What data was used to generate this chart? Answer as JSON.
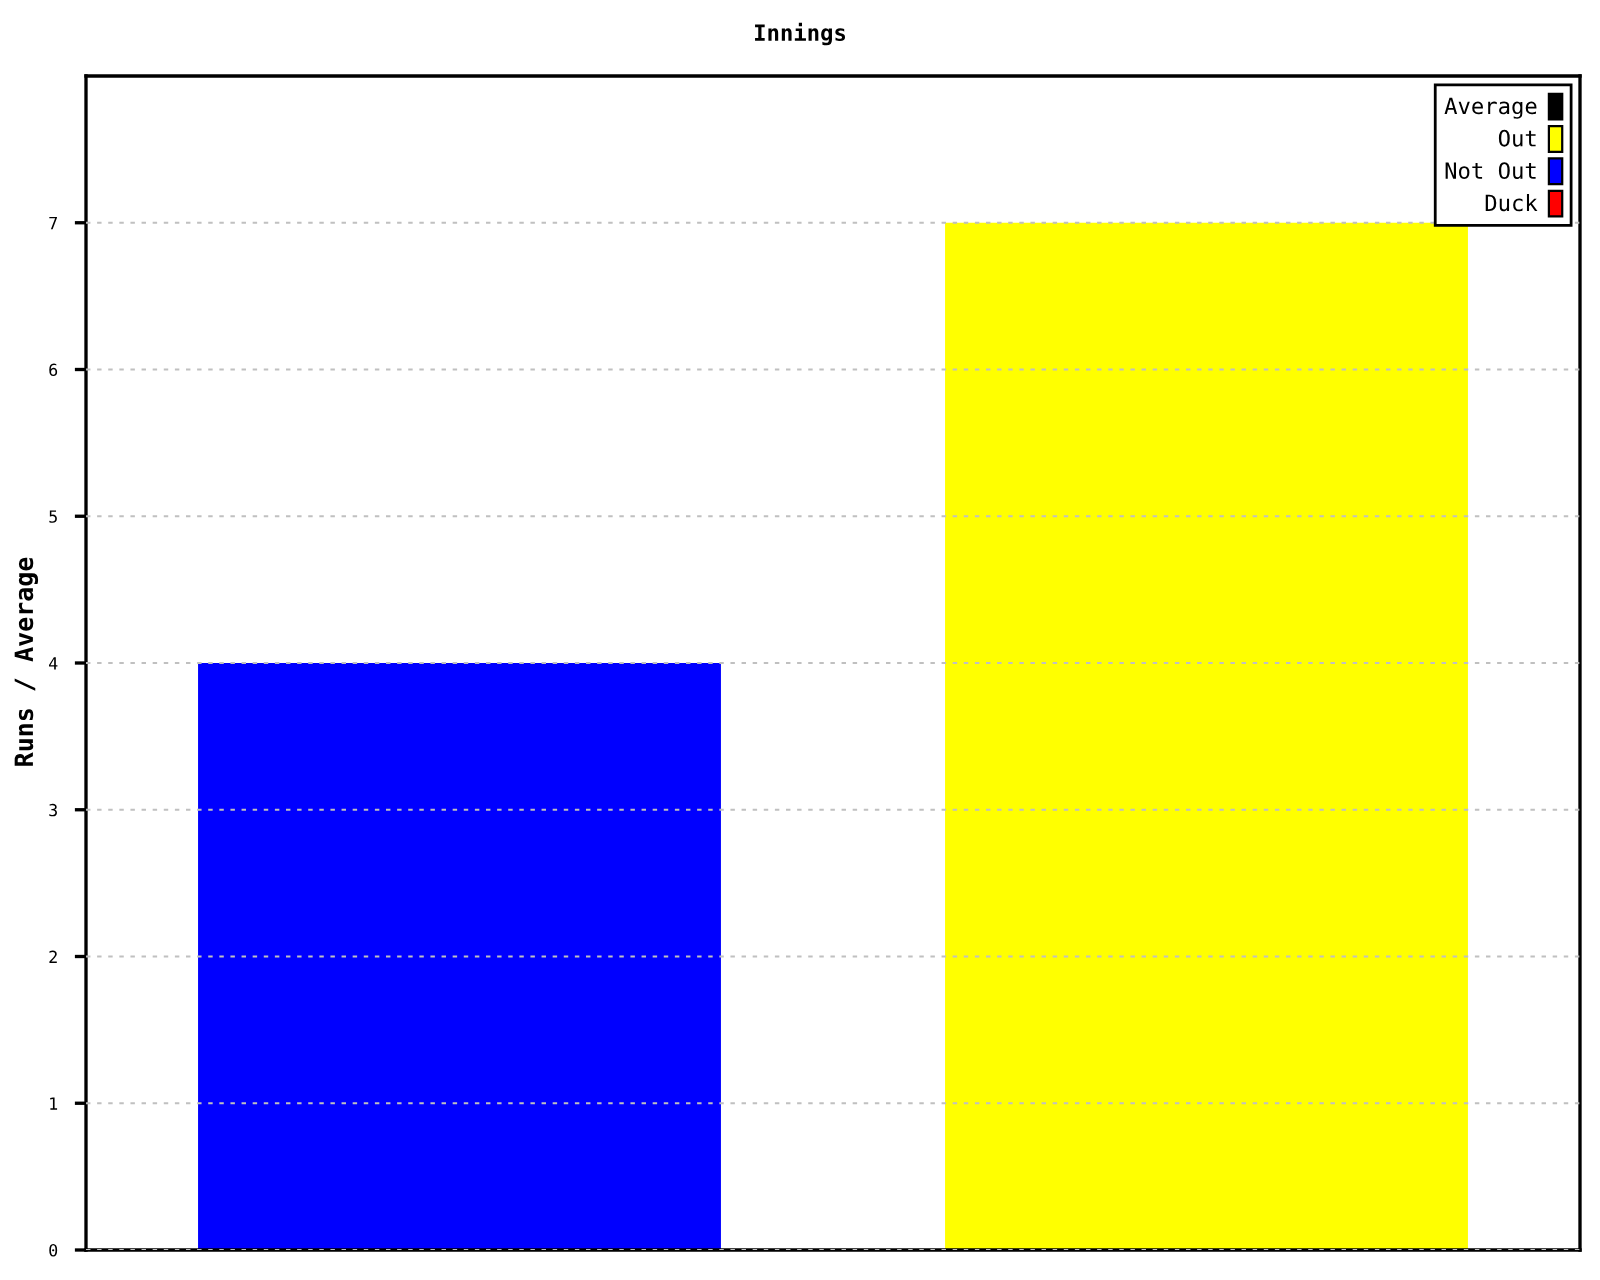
{
  "chart_data": {
    "type": "bar",
    "title": "Innings",
    "ylabel": "Runs / Average",
    "categories": [
      null,
      null
    ],
    "series": [
      {
        "name": "Average",
        "color": "#000000",
        "values": [
          null,
          null
        ]
      },
      {
        "name": "Out",
        "color": "#ffff00",
        "values": [
          null,
          7
        ]
      },
      {
        "name": "Not Out",
        "color": "#0000ff",
        "values": [
          4,
          null
        ]
      },
      {
        "name": "Duck",
        "color": "#ff0000",
        "values": [
          null,
          null
        ]
      }
    ],
    "stacked": true,
    "ylim": [
      0,
      8
    ],
    "yticks": [
      0,
      1,
      2,
      3,
      4,
      5,
      6,
      7
    ],
    "grid": "y",
    "legend": "top right"
  }
}
